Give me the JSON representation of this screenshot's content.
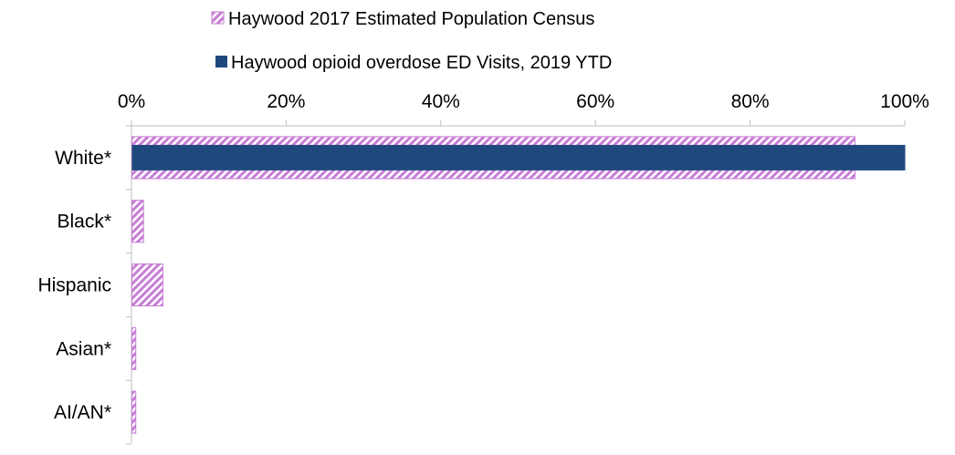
{
  "chart_data": {
    "type": "bar",
    "orientation": "horizontal",
    "categories": [
      "White*",
      "Black*",
      "Hispanic",
      "Asian*",
      "AI/AN*"
    ],
    "series": [
      {
        "name": "Haywood 2017 Estimated Population Census",
        "values": [
          93.5,
          1.5,
          4.0,
          0.5,
          0.5
        ],
        "color": "#c77dd6",
        "fill": "diagonal-hatch"
      },
      {
        "name": "Haywood opioid overdose ED Visits, 2019 YTD",
        "values": [
          100,
          0,
          0,
          0,
          0
        ],
        "color": "#1f497d",
        "fill": "solid"
      }
    ],
    "xlim": [
      0,
      100
    ],
    "x_ticks": [
      "0%",
      "20%",
      "40%",
      "60%",
      "80%",
      "100%"
    ],
    "x_axis_position": "top",
    "grid": false,
    "legend_position": "top"
  }
}
